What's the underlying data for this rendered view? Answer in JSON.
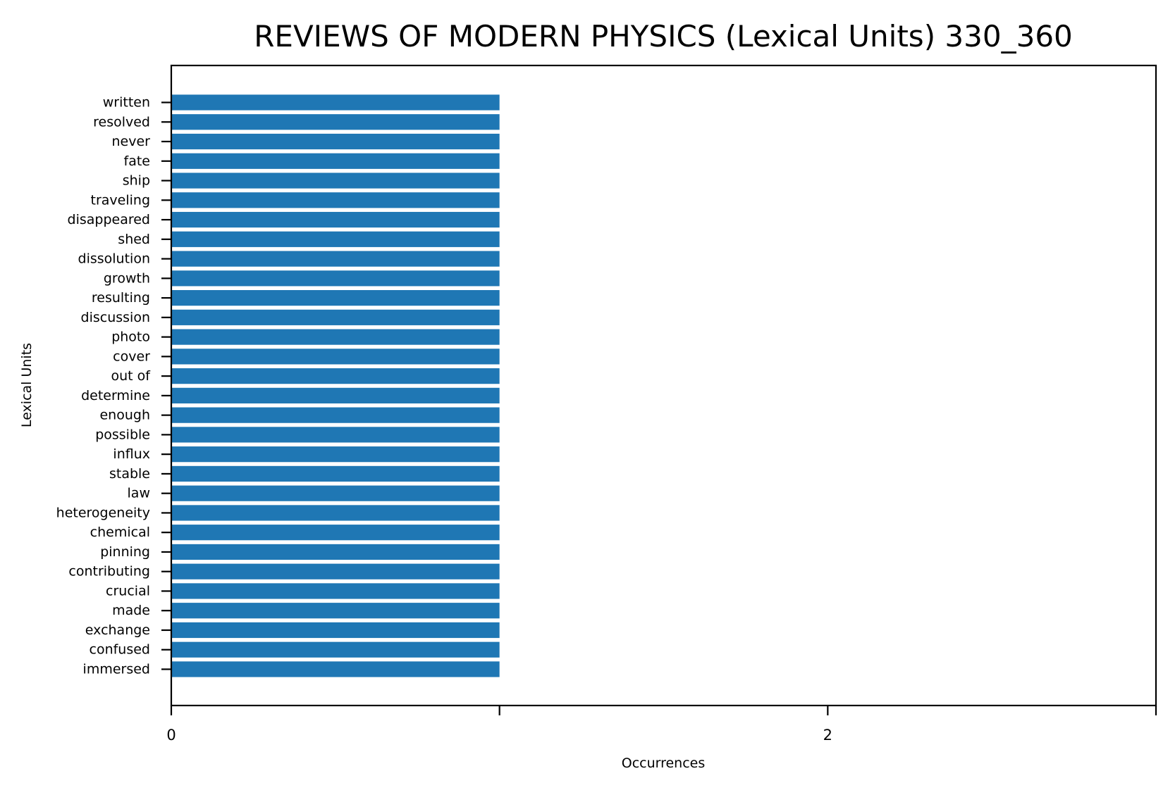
{
  "chart_data": {
    "type": "bar",
    "orientation": "horizontal",
    "title": "REVIEWS OF MODERN PHYSICS (Lexical Units) 330_360",
    "xlabel": "Occurrences",
    "ylabel": "Lexical Units",
    "xlim": [
      0,
      3
    ],
    "xticks": [
      0,
      1,
      2,
      3
    ],
    "xtick_labels": [
      "0",
      "",
      "2",
      ""
    ],
    "grid": false,
    "legend": "none",
    "bar_color": "#1f77b4",
    "categories": [
      "written",
      "resolved",
      "never",
      "fate",
      "ship",
      "traveling",
      "disappeared",
      "shed",
      "dissolution",
      "growth",
      "resulting",
      "discussion",
      "photo",
      "cover",
      "out of",
      "determine",
      "enough",
      "possible",
      "influx",
      "stable",
      "law",
      "heterogeneity",
      "chemical",
      "pinning",
      "contributing",
      "crucial",
      "made",
      "exchange",
      "confused",
      "immersed"
    ],
    "values": [
      1,
      1,
      1,
      1,
      1,
      1,
      1,
      1,
      1,
      1,
      1,
      1,
      1,
      1,
      1,
      1,
      1,
      1,
      1,
      1,
      1,
      1,
      1,
      1,
      1,
      1,
      1,
      1,
      1,
      1
    ]
  }
}
